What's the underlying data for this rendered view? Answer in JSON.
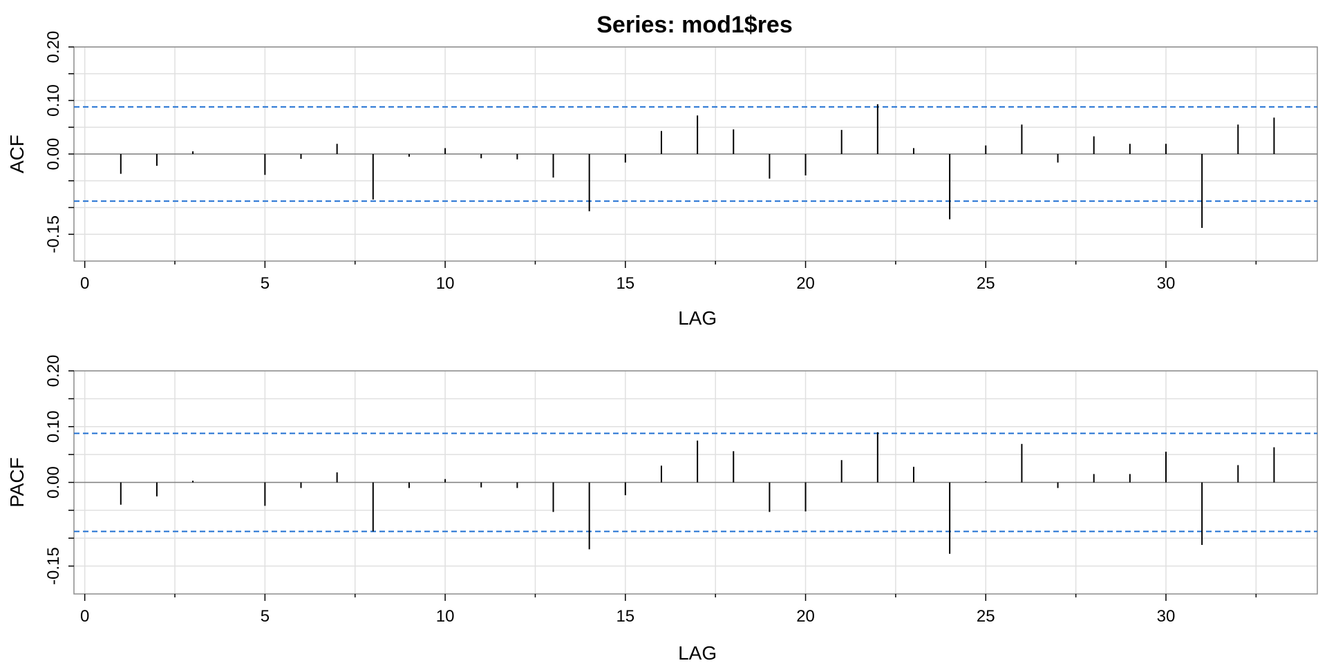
{
  "title": "Series:  mod1$res",
  "chart_data": [
    {
      "type": "bar",
      "panel": "ACF",
      "ylabel": "ACF",
      "xlabel": "LAG",
      "ylim": [
        -0.2,
        0.2
      ],
      "yticks": [
        -0.15,
        0.0,
        0.1,
        0.2
      ],
      "ytick_labels": [
        "-0.15",
        "0.00",
        "0.10",
        "0.20"
      ],
      "xlim": [
        -0.3,
        34.2
      ],
      "xticks": [
        0,
        5,
        10,
        15,
        20,
        25,
        30
      ],
      "xtick_labels": [
        "0",
        "5",
        "10",
        "15",
        "20",
        "25",
        "30"
      ],
      "conf_limits": [
        0.088,
        -0.088
      ],
      "grid": true,
      "lags": [
        1,
        2,
        3,
        4,
        5,
        6,
        7,
        8,
        9,
        10,
        11,
        12,
        13,
        14,
        15,
        16,
        17,
        18,
        19,
        20,
        21,
        22,
        23,
        24,
        25,
        26,
        27,
        28,
        29,
        30,
        31,
        32,
        33
      ],
      "values": [
        -0.037,
        -0.022,
        0.005,
        0.0,
        -0.039,
        -0.009,
        0.019,
        -0.085,
        -0.005,
        0.011,
        -0.008,
        -0.01,
        -0.044,
        -0.107,
        -0.016,
        0.043,
        0.072,
        0.046,
        -0.046,
        -0.04,
        0.045,
        0.093,
        0.011,
        -0.122,
        0.016,
        0.055,
        -0.016,
        0.033,
        0.019,
        0.019,
        -0.138,
        0.055,
        0.068
      ]
    },
    {
      "type": "bar",
      "panel": "PACF",
      "ylabel": "PACF",
      "xlabel": "LAG",
      "ylim": [
        -0.2,
        0.2
      ],
      "yticks": [
        -0.15,
        0.0,
        0.1,
        0.2
      ],
      "ytick_labels": [
        "-0.15",
        "0.00",
        "0.10",
        "0.20"
      ],
      "xlim": [
        -0.3,
        34.2
      ],
      "xticks": [
        0,
        5,
        10,
        15,
        20,
        25,
        30
      ],
      "xtick_labels": [
        "0",
        "5",
        "10",
        "15",
        "20",
        "25",
        "30"
      ],
      "conf_limits": [
        0.088,
        -0.088
      ],
      "grid": true,
      "lags": [
        1,
        2,
        3,
        4,
        5,
        6,
        7,
        8,
        9,
        10,
        11,
        12,
        13,
        14,
        15,
        16,
        17,
        18,
        19,
        20,
        21,
        22,
        23,
        24,
        25,
        26,
        27,
        28,
        29,
        30,
        31,
        32,
        33
      ],
      "values": [
        -0.04,
        -0.025,
        0.003,
        0.0,
        -0.042,
        -0.01,
        0.018,
        -0.088,
        -0.01,
        0.006,
        -0.009,
        -0.01,
        -0.053,
        -0.12,
        -0.023,
        0.03,
        0.075,
        0.056,
        -0.053,
        -0.052,
        0.04,
        0.09,
        0.028,
        -0.128,
        0.002,
        0.069,
        -0.01,
        0.015,
        0.015,
        0.055,
        -0.112,
        0.031,
        0.063
      ]
    }
  ],
  "colors": {
    "grid": "#e0e0e0",
    "frame": "#8c8c8c",
    "conf": "#1f6fd1",
    "spike": "#000000",
    "zero": "#808080"
  }
}
